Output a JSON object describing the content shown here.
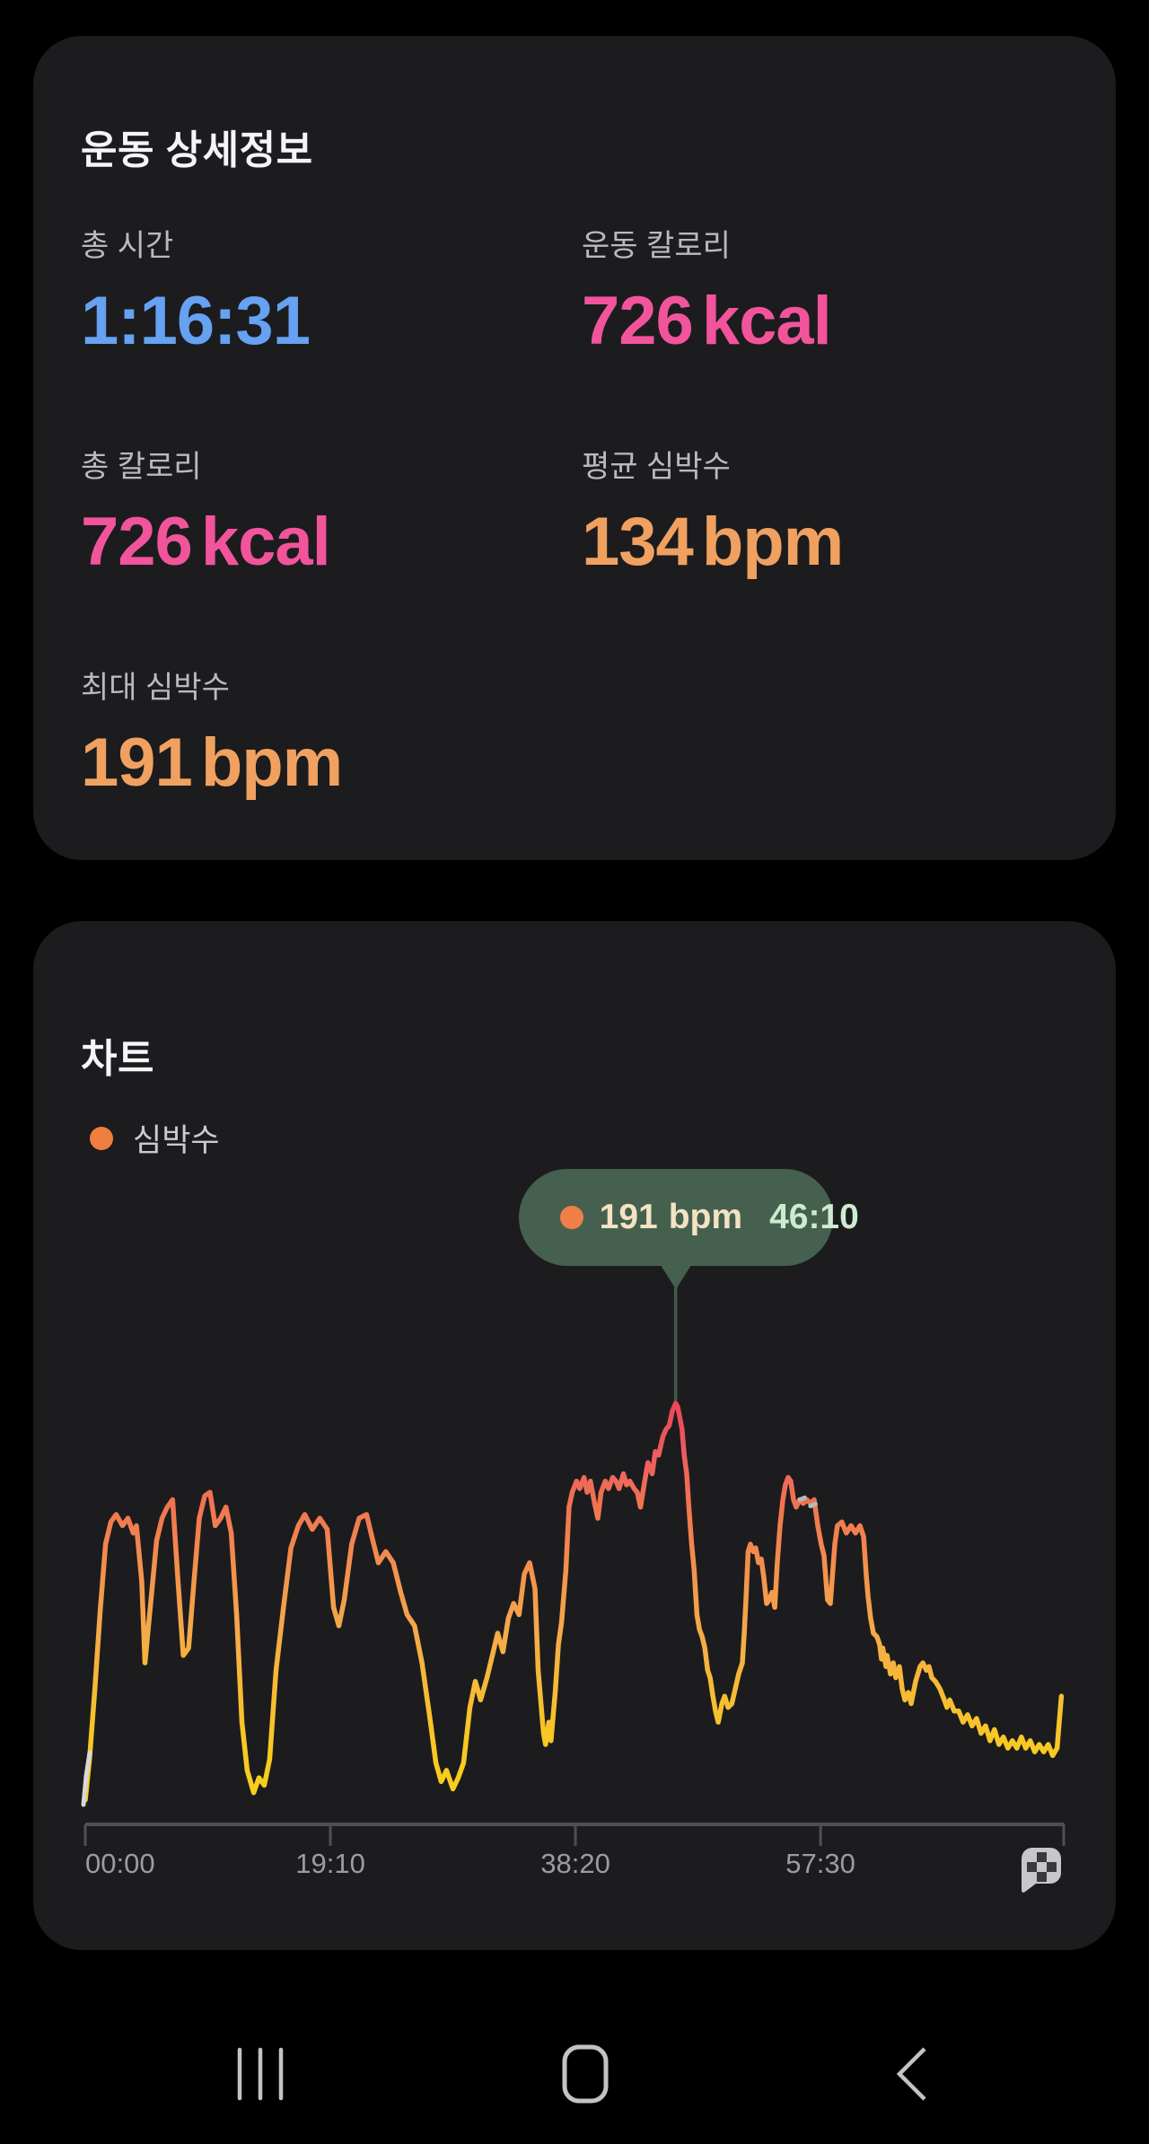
{
  "details_card": {
    "title": "운동 상세정보",
    "stats": [
      {
        "label": "총 시간",
        "value": "1:16:31",
        "unit": "",
        "color": "#66a1f2"
      },
      {
        "label": "운동 칼로리",
        "value": "726",
        "unit": "kcal",
        "color": "#f2549c"
      },
      {
        "label": "총 칼로리",
        "value": "726",
        "unit": "kcal",
        "color": "#f2549c"
      },
      {
        "label": "평균 심박수",
        "value": "134",
        "unit": "bpm",
        "color": "#f0a160"
      },
      {
        "label": "최대 심박수",
        "value": "191",
        "unit": "bpm",
        "color": "#f0a160"
      }
    ]
  },
  "chart_card": {
    "title": "차트",
    "legend": {
      "label": "심박수",
      "dot_color": "#f07e40"
    },
    "tooltip": {
      "value": "191",
      "unit": "bpm",
      "time": "46:10",
      "dot_color": "#ef7f46",
      "bg": "#45604f",
      "stem_color": "#3e5b4a"
    },
    "colors": {
      "card_bg": "#1c1c1e",
      "axis_line": "#4f5053",
      "axis_label": "#9b9c9e"
    }
  },
  "chart_data": {
    "type": "line",
    "title": "차트",
    "legend_position": "top-left",
    "grid": false,
    "x_axis": {
      "duration_seconds": 4591,
      "ticks": [
        {
          "t": 0,
          "label": "00:00",
          "align": "left"
        },
        {
          "t": 1150,
          "label": "19:10",
          "align": "center"
        },
        {
          "t": 2300,
          "label": "38:20",
          "align": "center"
        },
        {
          "t": 3450,
          "label": "57:30",
          "align": "center"
        }
      ],
      "end_tick_t": 4591
    },
    "y_axis": {
      "unit": "bpm",
      "min": 80,
      "max": 195
    },
    "annotations": {
      "peak": {
        "t": 2770,
        "bpm": 191,
        "time_label": "46:10"
      }
    },
    "gradient_stops": [
      "#eb4156",
      "#ee5d60",
      "#f0784f",
      "#f3924d",
      "#f5a94a",
      "#f6bb34",
      "#f8c922",
      "#f9cf1a"
    ],
    "series": [
      {
        "name": "심박수",
        "unit": "bpm",
        "points": [
          [
            0,
            84
          ],
          [
            20,
            95
          ],
          [
            45,
            114
          ],
          [
            70,
            135
          ],
          [
            95,
            153
          ],
          [
            120,
            159
          ],
          [
            145,
            161
          ],
          [
            175,
            158
          ],
          [
            200,
            160
          ],
          [
            225,
            156
          ],
          [
            240,
            158
          ],
          [
            265,
            143
          ],
          [
            280,
            121
          ],
          [
            305,
            136
          ],
          [
            335,
            154
          ],
          [
            360,
            160
          ],
          [
            385,
            163
          ],
          [
            410,
            165
          ],
          [
            435,
            143
          ],
          [
            460,
            123
          ],
          [
            485,
            125
          ],
          [
            510,
            143
          ],
          [
            535,
            160
          ],
          [
            560,
            166
          ],
          [
            585,
            167
          ],
          [
            610,
            158
          ],
          [
            635,
            160
          ],
          [
            660,
            163
          ],
          [
            685,
            156
          ],
          [
            710,
            134
          ],
          [
            735,
            105
          ],
          [
            760,
            92
          ],
          [
            790,
            86
          ],
          [
            815,
            90
          ],
          [
            840,
            88
          ],
          [
            865,
            95
          ],
          [
            895,
            119
          ],
          [
            930,
            136
          ],
          [
            965,
            152
          ],
          [
            1000,
            158
          ],
          [
            1030,
            161
          ],
          [
            1065,
            157
          ],
          [
            1100,
            160
          ],
          [
            1135,
            157
          ],
          [
            1165,
            136
          ],
          [
            1190,
            131
          ],
          [
            1215,
            138
          ],
          [
            1250,
            153
          ],
          [
            1285,
            160
          ],
          [
            1320,
            161
          ],
          [
            1345,
            155
          ],
          [
            1375,
            148
          ],
          [
            1410,
            151
          ],
          [
            1445,
            148
          ],
          [
            1480,
            140
          ],
          [
            1510,
            134
          ],
          [
            1545,
            131
          ],
          [
            1580,
            121
          ],
          [
            1615,
            107
          ],
          [
            1645,
            94
          ],
          [
            1670,
            89
          ],
          [
            1695,
            92
          ],
          [
            1725,
            87
          ],
          [
            1750,
            90
          ],
          [
            1775,
            94
          ],
          [
            1805,
            109
          ],
          [
            1830,
            116
          ],
          [
            1855,
            111
          ],
          [
            1885,
            117
          ],
          [
            1910,
            123
          ],
          [
            1935,
            129
          ],
          [
            1960,
            124
          ],
          [
            1985,
            133
          ],
          [
            2010,
            137
          ],
          [
            2035,
            134
          ],
          [
            2060,
            145
          ],
          [
            2085,
            148
          ],
          [
            2110,
            141
          ],
          [
            2125,
            119
          ],
          [
            2150,
            102
          ],
          [
            2160,
            99
          ],
          [
            2175,
            105
          ],
          [
            2185,
            100
          ],
          [
            2205,
            113
          ],
          [
            2220,
            126
          ],
          [
            2235,
            132
          ],
          [
            2255,
            146
          ],
          [
            2270,
            163
          ],
          [
            2285,
            167
          ],
          [
            2305,
            170
          ],
          [
            2320,
            168
          ],
          [
            2340,
            171
          ],
          [
            2355,
            167
          ],
          [
            2370,
            170
          ],
          [
            2390,
            164
          ],
          [
            2405,
            160
          ],
          [
            2420,
            167
          ],
          [
            2440,
            170
          ],
          [
            2455,
            168
          ],
          [
            2475,
            171
          ],
          [
            2490,
            170
          ],
          [
            2505,
            168
          ],
          [
            2525,
            172
          ],
          [
            2540,
            169
          ],
          [
            2555,
            170
          ],
          [
            2575,
            168
          ],
          [
            2590,
            167
          ],
          [
            2605,
            163
          ],
          [
            2625,
            170
          ],
          [
            2640,
            175
          ],
          [
            2660,
            172
          ],
          [
            2675,
            178
          ],
          [
            2690,
            177
          ],
          [
            2710,
            182
          ],
          [
            2725,
            184
          ],
          [
            2740,
            185
          ],
          [
            2755,
            189
          ],
          [
            2770,
            191
          ],
          [
            2780,
            190
          ],
          [
            2790,
            187
          ],
          [
            2800,
            184
          ],
          [
            2810,
            177
          ],
          [
            2822,
            172
          ],
          [
            2832,
            163
          ],
          [
            2845,
            153
          ],
          [
            2857,
            146
          ],
          [
            2870,
            134
          ],
          [
            2882,
            130
          ],
          [
            2895,
            128
          ],
          [
            2907,
            125
          ],
          [
            2920,
            119
          ],
          [
            2932,
            117
          ],
          [
            2945,
            112
          ],
          [
            2957,
            108
          ],
          [
            2970,
            105
          ],
          [
            2987,
            110
          ],
          [
            3000,
            112
          ],
          [
            3016,
            109
          ],
          [
            3034,
            110
          ],
          [
            3050,
            114
          ],
          [
            3066,
            118
          ],
          [
            3083,
            121
          ],
          [
            3092,
            129
          ],
          [
            3100,
            138
          ],
          [
            3110,
            151
          ],
          [
            3121,
            153
          ],
          [
            3134,
            151
          ],
          [
            3146,
            152
          ],
          [
            3159,
            148
          ],
          [
            3172,
            149
          ],
          [
            3184,
            144
          ],
          [
            3197,
            137
          ],
          [
            3209,
            138
          ],
          [
            3222,
            140
          ],
          [
            3235,
            136
          ],
          [
            3247,
            148
          ],
          [
            3260,
            158
          ],
          [
            3273,
            165
          ],
          [
            3285,
            169
          ],
          [
            3298,
            171
          ],
          [
            3310,
            170
          ],
          [
            3323,
            165
          ],
          [
            3336,
            163
          ],
          [
            3352,
            165
          ],
          [
            3369,
            164
          ],
          [
            3386,
            165
          ],
          [
            3403,
            164
          ],
          [
            3420,
            165
          ],
          [
            3437,
            158
          ],
          [
            3453,
            153
          ],
          [
            3466,
            150
          ],
          [
            3483,
            138
          ],
          [
            3496,
            137
          ],
          [
            3517,
            153
          ],
          [
            3529,
            158
          ],
          [
            3550,
            159
          ],
          [
            3571,
            156
          ],
          [
            3593,
            158
          ],
          [
            3614,
            156
          ],
          [
            3635,
            158
          ],
          [
            3652,
            155
          ],
          [
            3664,
            145
          ],
          [
            3673,
            139
          ],
          [
            3685,
            133
          ],
          [
            3698,
            129
          ],
          [
            3715,
            128
          ],
          [
            3727,
            126
          ],
          [
            3736,
            122
          ],
          [
            3742,
            125
          ],
          [
            3757,
            120
          ],
          [
            3762,
            123
          ],
          [
            3778,
            118
          ],
          [
            3791,
            121
          ],
          [
            3803,
            117
          ],
          [
            3820,
            120
          ],
          [
            3833,
            114
          ],
          [
            3846,
            111
          ],
          [
            3862,
            113
          ],
          [
            3875,
            110
          ],
          [
            3896,
            116
          ],
          [
            3917,
            120
          ],
          [
            3930,
            121
          ],
          [
            3947,
            119
          ],
          [
            3959,
            120
          ],
          [
            3972,
            117
          ],
          [
            3989,
            116
          ],
          [
            4010,
            114
          ],
          [
            4031,
            111
          ],
          [
            4043,
            109
          ],
          [
            4056,
            111
          ],
          [
            4077,
            108
          ],
          [
            4098,
            108
          ],
          [
            4119,
            105
          ],
          [
            4140,
            107
          ],
          [
            4161,
            104
          ],
          [
            4182,
            106
          ],
          [
            4203,
            102
          ],
          [
            4224,
            104
          ],
          [
            4245,
            100
          ],
          [
            4266,
            103
          ],
          [
            4287,
            99
          ],
          [
            4308,
            101
          ],
          [
            4329,
            98
          ],
          [
            4350,
            100
          ],
          [
            4371,
            98
          ],
          [
            4392,
            101
          ],
          [
            4413,
            98
          ],
          [
            4434,
            100
          ],
          [
            4455,
            97
          ],
          [
            4476,
            99
          ],
          [
            4497,
            97
          ],
          [
            4518,
            99
          ],
          [
            4539,
            96
          ],
          [
            4560,
            98
          ],
          [
            4580,
            112
          ]
        ]
      }
    ]
  },
  "navbar": {
    "recents": "recents",
    "home": "home",
    "back": "back",
    "icon_color": "#c2c3c5"
  }
}
